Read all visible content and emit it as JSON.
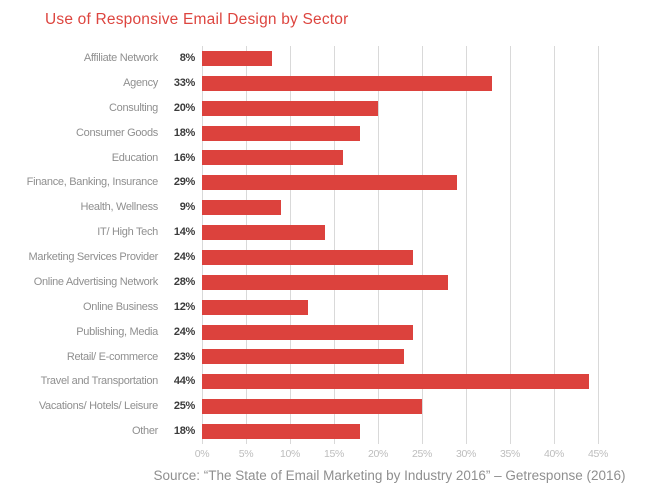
{
  "title": "Use of Responsive Email Design by Sector",
  "source": "Source: “The State of Email Marketing by Industry 2016” – Getresponse (2016)",
  "colors": {
    "bar_red": "#DC423D",
    "title_red": "#DD453F",
    "category_label_gray": "#8F8F8F",
    "value_label_dark": "#3B3B3B",
    "tick_gray": "#BDBDBD",
    "gridline_gray": "#D9D9D9",
    "background": "#FFFFFF"
  },
  "chart_data": {
    "type": "bar",
    "orientation": "horizontal",
    "title": "Use of Responsive Email Design by Sector",
    "xlabel": "",
    "ylabel": "",
    "xlim": [
      0,
      45
    ],
    "grid": "vertical",
    "legend": "none",
    "categories": [
      "Affiliate Network",
      "Agency",
      "Consulting",
      "Consumer Goods",
      "Education",
      "Finance, Banking, Insurance",
      "Health, Wellness",
      "IT/ High Tech",
      "Marketing Services Provider",
      "Online Advertising Network",
      "Online Business",
      "Publishing, Media",
      "Retail/ E-commerce",
      "Travel and Transportation",
      "Vacations/ Hotels/ Leisure",
      "Other"
    ],
    "values": [
      8,
      33,
      20,
      18,
      16,
      29,
      9,
      14,
      24,
      28,
      12,
      24,
      23,
      44,
      25,
      18
    ],
    "value_labels": [
      "8%",
      "33%",
      "20%",
      "18%",
      "16%",
      "29%",
      "9%",
      "14%",
      "24%",
      "28%",
      "12%",
      "24%",
      "23%",
      "44%",
      "25%",
      "18%"
    ],
    "x_ticks": [
      "0%",
      "5%",
      "10%",
      "15%",
      "20%",
      "25%",
      "30%",
      "35%",
      "40%",
      "45%"
    ],
    "x_tick_values": [
      0,
      5,
      10,
      15,
      20,
      25,
      30,
      35,
      40,
      45
    ]
  }
}
